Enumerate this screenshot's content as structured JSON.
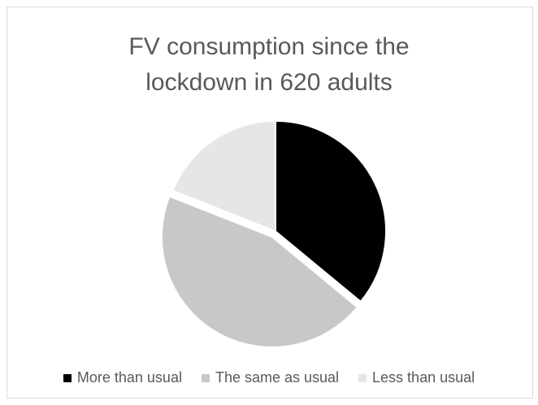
{
  "chart_data": {
    "type": "pie",
    "title": "FV consumption since the lockdown in 620 adults",
    "title_lines": [
      "FV consumption since the",
      "lockdown in 620 adults"
    ],
    "categories": [
      "More than usual",
      "The same as usual",
      "Less than usual"
    ],
    "values": [
      36,
      45,
      19
    ],
    "colors": [
      "#000000",
      "#c8c8c8",
      "#e6e6e6"
    ],
    "exploded": "The same as usual",
    "legend_position": "bottom"
  }
}
